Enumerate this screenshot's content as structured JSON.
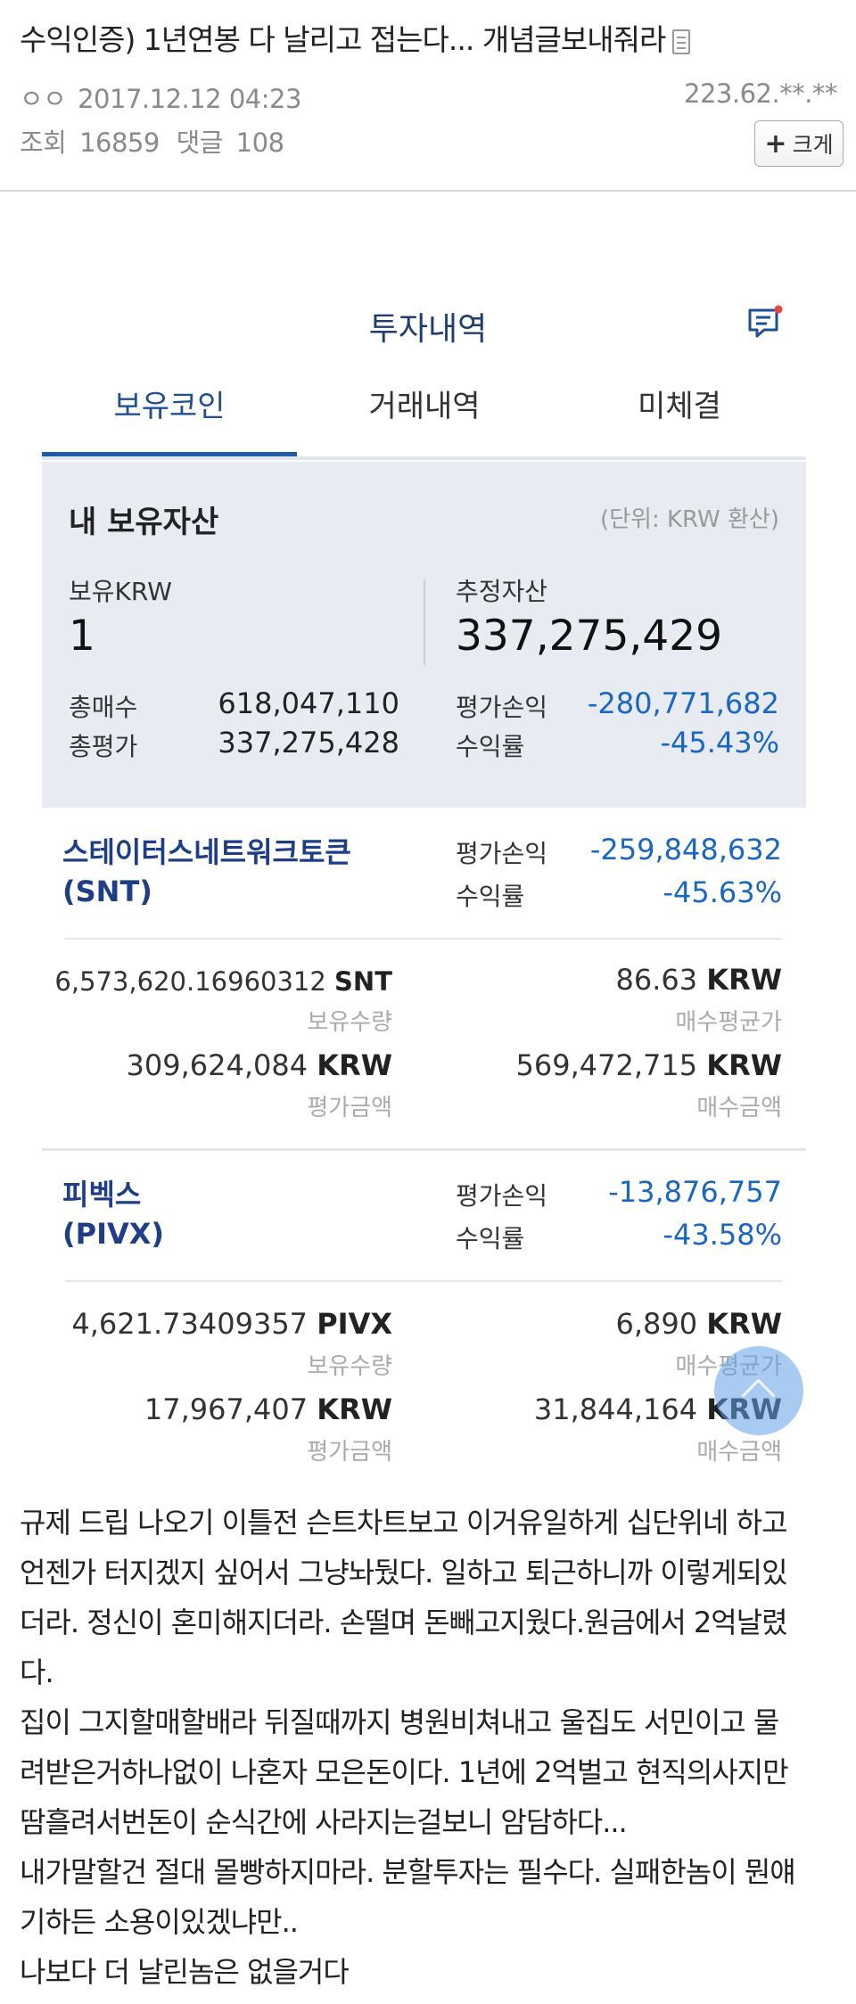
{
  "post": {
    "title": "수익인증) 1년연봉 다 날리고 접는다... 개념글보내줘라",
    "author": "ㅇㅇ",
    "date": "2017.12.12 04:23",
    "ip": "223.62.**.**",
    "views_label": "조회",
    "views": "16859",
    "comments_label": "댓글",
    "comments": "108",
    "bigger_button_label": "크게"
  },
  "screenshot": {
    "title": "투자내역",
    "tabs": [
      "보유코인",
      "거래내역",
      "미체결"
    ],
    "active_tab": 0,
    "summary": {
      "heading": "내 보유자산",
      "unit_note": "(단위: KRW 환산)",
      "krw_label": "보유KRW",
      "krw_value": "1",
      "estimated_label": "추정자산",
      "estimated_value": "337,275,429",
      "total_buy_label": "총매수",
      "total_buy_value": "618,047,110",
      "total_eval_label": "총평가",
      "total_eval_value": "337,275,428",
      "pnl_label": "평가손익",
      "pnl_value": "-280,771,682",
      "return_label": "수익률",
      "return_value": "-45.43%"
    },
    "coins": [
      {
        "name": "스테이터스네트워크토큰",
        "symbol": "(SNT)",
        "pnl_label": "평가손익",
        "pnl_value": "-259,848,632",
        "return_label": "수익률",
        "return_value": "-45.63%",
        "holding_amount": "6,573,620.16960312",
        "holding_unit": "SNT",
        "holding_label": "보유수량",
        "avg_price": "86.63",
        "avg_price_unit": "KRW",
        "avg_price_label": "매수평균가",
        "eval_amount": "309,624,084",
        "eval_unit": "KRW",
        "eval_label": "평가금액",
        "buy_amount": "569,472,715",
        "buy_unit": "KRW",
        "buy_label": "매수금액"
      },
      {
        "name": "피벡스",
        "symbol": "(PIVX)",
        "pnl_label": "평가손익",
        "pnl_value": "-13,876,757",
        "return_label": "수익률",
        "return_value": "-43.58%",
        "holding_amount": "4,621.73409357",
        "holding_unit": "PIVX",
        "holding_label": "보유수량",
        "avg_price": "6,890",
        "avg_price_unit": "KRW",
        "avg_price_label": "매수평균가",
        "eval_amount": "17,967,407",
        "eval_unit": "KRW",
        "eval_label": "평가금액",
        "buy_amount": "31,844,164",
        "buy_unit": "KRW",
        "buy_label": "매수금액"
      }
    ]
  },
  "body_lines": [
    "규제 드립 나오기 이틀전 슨트차트보고 이거유일하게 십단위네 하고",
    "언젠가 터지겠지 싶어서 그냥놔뒀다. 일하고 퇴근하니까 이렇게되있",
    "더라. 정신이 혼미해지더라. 손떨며 돈빼고지웠다.원금에서 2억날렸",
    "다.",
    "집이 그지할매할배라 뒤질때까지 병원비쳐내고 울집도 서민이고 물",
    "려받은거하나없이 나혼자 모은돈이다. 1년에 2억벌고 현직의사지만",
    "땀흘려서번돈이 순식간에 사라지는걸보니 암담하다...",
    "내가말할건 절대 몰빵하지마라. 분할투자는 필수다. 실패한놈이 뭔얘",
    "기하든 소용이있겠냐만..",
    "나보다 더 날린놈은 없을거다"
  ]
}
